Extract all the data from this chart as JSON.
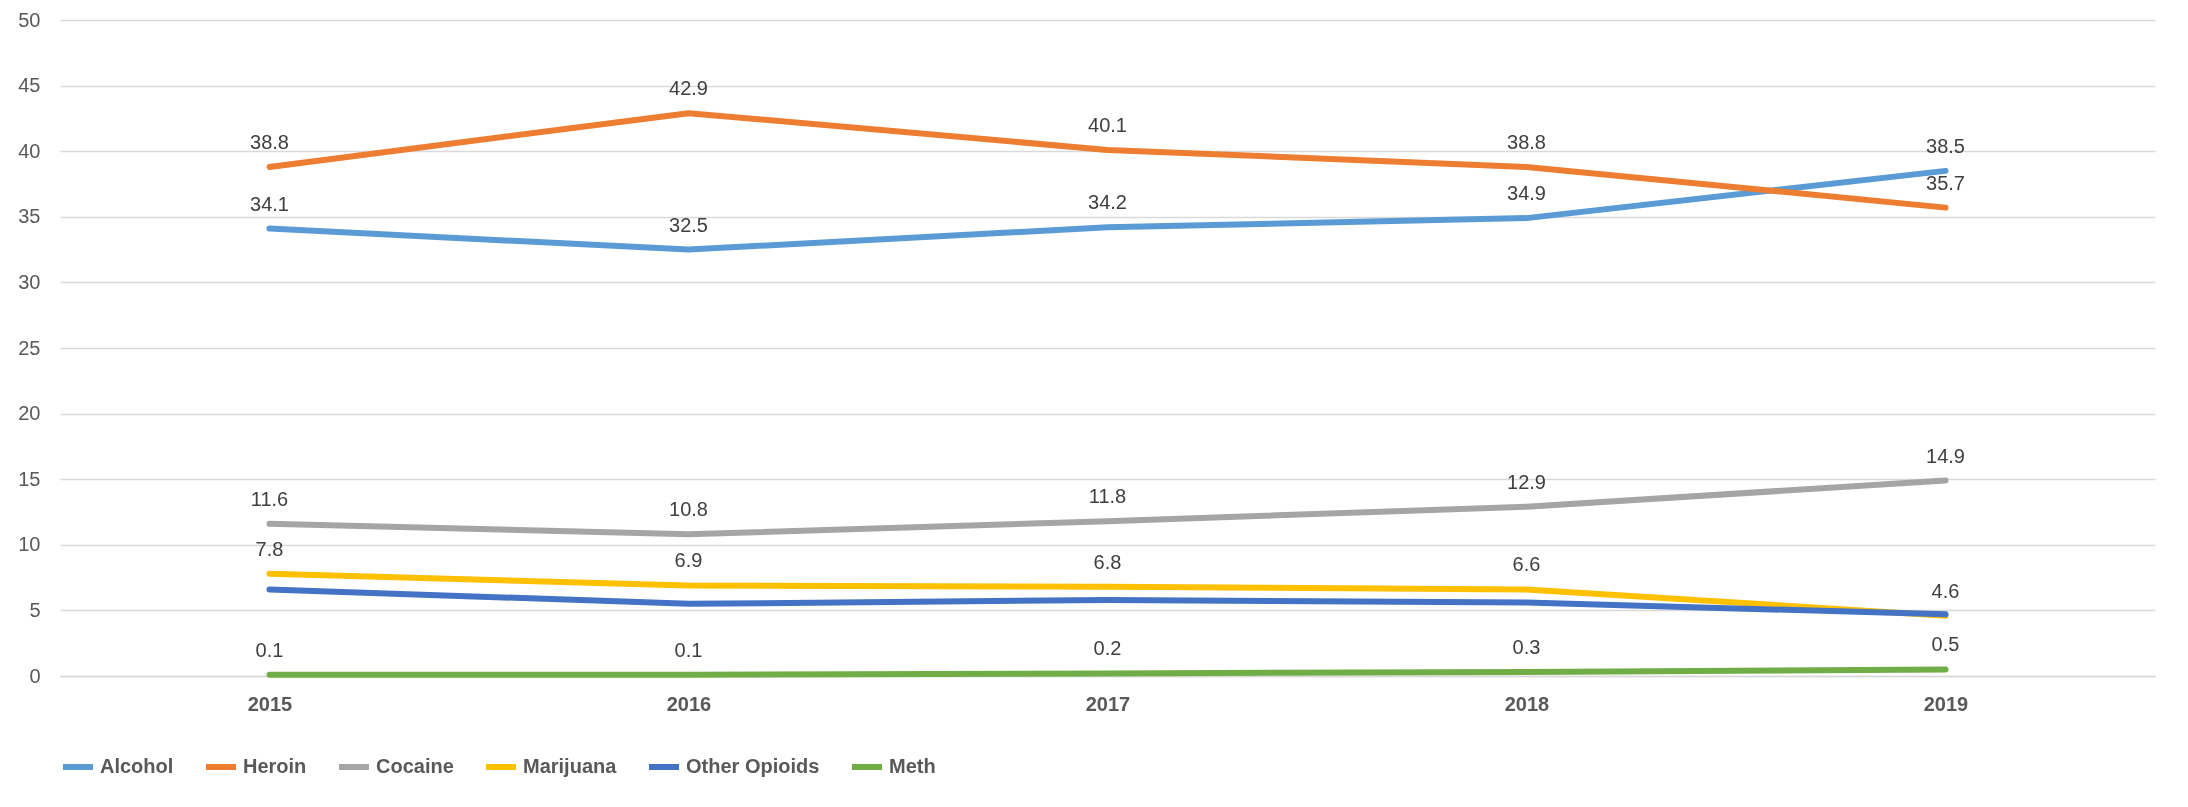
{
  "chart_data": {
    "type": "line",
    "categories": [
      "2015",
      "2016",
      "2017",
      "2018",
      "2019"
    ],
    "ylim": [
      0,
      50
    ],
    "yticks": [
      0,
      5,
      10,
      15,
      20,
      25,
      30,
      35,
      40,
      45,
      50
    ],
    "grid": "y",
    "legend": "bottom",
    "marker": "none",
    "line_style": "solid",
    "series": [
      {
        "name": "Alcohol",
        "color": "#5b9bd5",
        "values": [
          34.1,
          32.5,
          34.2,
          34.9,
          38.5
        ],
        "value_labels": [
          "34.1",
          "32.5",
          "34.2",
          "34.9",
          "38.5"
        ]
      },
      {
        "name": "Heroin",
        "color": "#ed7d31",
        "values": [
          38.8,
          42.9,
          40.1,
          38.8,
          35.7
        ],
        "value_labels": [
          "38.8",
          "42.9",
          "40.1",
          "38.8",
          "35.7"
        ]
      },
      {
        "name": "Cocaine",
        "color": "#a5a5a5",
        "values": [
          11.6,
          10.8,
          11.8,
          12.9,
          14.9
        ],
        "value_labels": [
          "11.6",
          "10.8",
          "11.8",
          "12.9",
          "14.9"
        ]
      },
      {
        "name": "Marijuana",
        "color": "#ffc000",
        "values": [
          7.8,
          6.9,
          6.8,
          6.6,
          4.6
        ],
        "value_labels": [
          "7.8",
          "6.9",
          "6.8",
          "6.6",
          "4.6"
        ]
      },
      {
        "name": "Other Opioids",
        "color": "#4472c4",
        "values": [
          6.6,
          5.5,
          5.8,
          5.6,
          4.7
        ],
        "value_labels": [
          null,
          null,
          null,
          null,
          null
        ]
      },
      {
        "name": "Meth",
        "color": "#70ad47",
        "values": [
          0.1,
          0.1,
          0.2,
          0.3,
          0.5
        ],
        "value_labels": [
          "0.1",
          "0.1",
          "0.2",
          "0.3",
          "0.5"
        ]
      }
    ]
  }
}
